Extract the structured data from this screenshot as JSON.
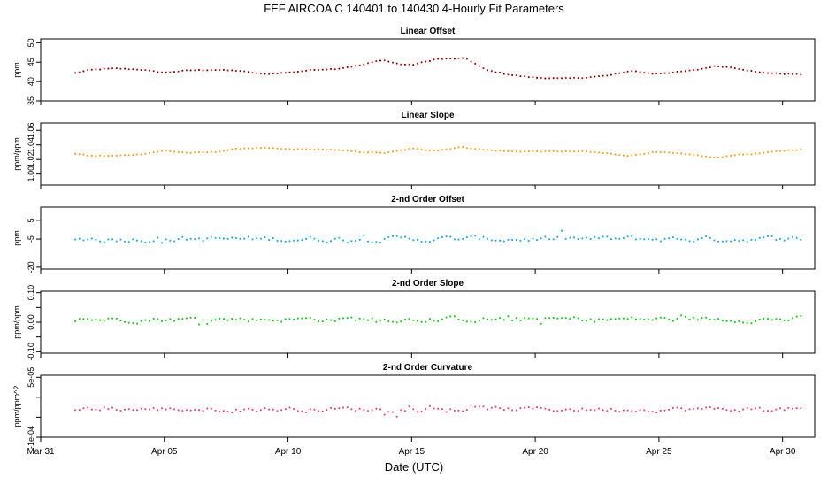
{
  "title": "FEF   AIRCOA C   140401 to 140430   4-Hourly Fit Parameters",
  "xlabel": "Date (UTC)",
  "x_ticks": [
    "Mar 31",
    "Apr 05",
    "Apr 10",
    "Apr 15",
    "Apr 20",
    "Apr 25",
    "Apr 30"
  ],
  "colors": {
    "linear_offset": "#cc0000",
    "linear_offset_dot": "#111111",
    "linear_slope": "#ff9900",
    "second_offset": "#00aaee",
    "second_slope": "#00cc00",
    "second_curvature": "#ff3366"
  },
  "chart_data": [
    {
      "type": "line",
      "title": "Linear Offset",
      "ylabel": "ppm",
      "ylim": [
        35,
        51
      ],
      "yticks": [
        "35",
        "40",
        "45",
        "50"
      ],
      "ytick_values": [
        35,
        40,
        45,
        50
      ],
      "x_start_day": 1.4,
      "x_step_days": 0.1667,
      "x_axis_days": [
        0,
        31.3
      ],
      "anchors": [
        [
          1.4,
          42.2
        ],
        [
          2.0,
          43.0
        ],
        [
          3.0,
          43.4
        ],
        [
          4.0,
          43.1
        ],
        [
          5.0,
          42.3
        ],
        [
          6.0,
          42.9
        ],
        [
          7.0,
          43.0
        ],
        [
          8.0,
          42.8
        ],
        [
          9.0,
          41.9
        ],
        [
          10.0,
          42.3
        ],
        [
          11.0,
          43.0
        ],
        [
          12.0,
          43.3
        ],
        [
          13.0,
          44.3
        ],
        [
          13.8,
          45.6
        ],
        [
          14.5,
          44.5
        ],
        [
          15.0,
          44.3
        ],
        [
          16.0,
          45.8
        ],
        [
          17.2,
          46.0
        ],
        [
          17.6,
          44.5
        ],
        [
          18.0,
          43.0
        ],
        [
          19.0,
          41.7
        ],
        [
          20.0,
          41.0
        ],
        [
          21.0,
          40.8
        ],
        [
          22.0,
          41.0
        ],
        [
          23.0,
          41.6
        ],
        [
          23.9,
          42.8
        ],
        [
          24.7,
          42.0
        ],
        [
          25.5,
          42.3
        ],
        [
          26.5,
          43.0
        ],
        [
          27.3,
          44.0
        ],
        [
          28.0,
          43.6
        ],
        [
          29.0,
          42.4
        ],
        [
          30.0,
          42.0
        ],
        [
          30.9,
          41.8
        ]
      ]
    },
    {
      "type": "line",
      "title": "Linear Slope",
      "ylabel": "ppm/ppm",
      "ylim": [
        0.985,
        1.07
      ],
      "yticks": [
        "1.00",
        "1.02",
        "1.04",
        "1.06"
      ],
      "ytick_values": [
        1.0,
        1.02,
        1.04,
        1.06
      ],
      "ytick_labels_shown": [
        "1.00",
        "1.04"
      ],
      "x_start_day": 1.4,
      "x_step_days": 0.1667,
      "x_axis_days": [
        0,
        31.3
      ],
      "anchors": [
        [
          1.4,
          1.028
        ],
        [
          2.0,
          1.025
        ],
        [
          3.0,
          1.025
        ],
        [
          4.0,
          1.027
        ],
        [
          5.0,
          1.032
        ],
        [
          6.0,
          1.029
        ],
        [
          7.0,
          1.03
        ],
        [
          8.0,
          1.035
        ],
        [
          9.0,
          1.036
        ],
        [
          10.0,
          1.034
        ],
        [
          11.0,
          1.034
        ],
        [
          12.0,
          1.033
        ],
        [
          13.0,
          1.03
        ],
        [
          14.0,
          1.029
        ],
        [
          15.0,
          1.035
        ],
        [
          16.0,
          1.032
        ],
        [
          17.0,
          1.037
        ],
        [
          18.0,
          1.033
        ],
        [
          19.0,
          1.031
        ],
        [
          20.0,
          1.031
        ],
        [
          21.0,
          1.031
        ],
        [
          22.0,
          1.031
        ],
        [
          23.0,
          1.028
        ],
        [
          23.8,
          1.025
        ],
        [
          24.8,
          1.03
        ],
        [
          25.5,
          1.029
        ],
        [
          26.5,
          1.026
        ],
        [
          27.3,
          1.022
        ],
        [
          28.0,
          1.026
        ],
        [
          29.0,
          1.028
        ],
        [
          30.0,
          1.032
        ],
        [
          30.9,
          1.034
        ]
      ]
    },
    {
      "type": "line",
      "title": "2-nd Order Offset",
      "ylabel": "ppm",
      "ylim": [
        -21,
        12
      ],
      "yticks": [
        "-20",
        "-5",
        "5"
      ],
      "ytick_values": [
        -20,
        -5,
        5
      ],
      "ytick_labels_shown": [
        "-20",
        "-5",
        "5"
      ],
      "x_start_day": 1.4,
      "x_step_days": 0.1667,
      "x_axis_days": [
        0,
        31.3
      ],
      "base": -5.0,
      "amplitude": 2.0
    },
    {
      "type": "line",
      "title": "2-nd Order Slope",
      "ylabel": "ppm/ppm",
      "ylim": [
        -0.105,
        0.105
      ],
      "yticks": [
        "-0.10",
        "0.00",
        "0.10"
      ],
      "ytick_values": [
        -0.1,
        -0.05,
        0.0,
        0.05,
        0.1
      ],
      "ytick_labels_shown": [
        "-0.10",
        "0.00",
        "0.10"
      ],
      "x_start_day": 1.4,
      "x_step_days": 0.1667,
      "x_axis_days": [
        0,
        31.3
      ],
      "base": 0.01,
      "amplitude": 0.012
    },
    {
      "type": "line",
      "title": "2-nd Order Curvature",
      "ylabel": "ppm/ppm^2",
      "ylim": [
        -0.0001,
        5.5e-05
      ],
      "yticks": [
        "-1e-04",
        "5e-05"
      ],
      "ytick_values": [
        -0.0001,
        -5e-05,
        0.0,
        5e-05
      ],
      "ytick_labels_shown": [
        "-1e-04",
        "5e-05"
      ],
      "x_start_day": 1.4,
      "x_step_days": 0.1667,
      "x_axis_days": [
        0,
        31.3
      ],
      "base": -3e-05,
      "amplitude": 8e-06
    }
  ]
}
